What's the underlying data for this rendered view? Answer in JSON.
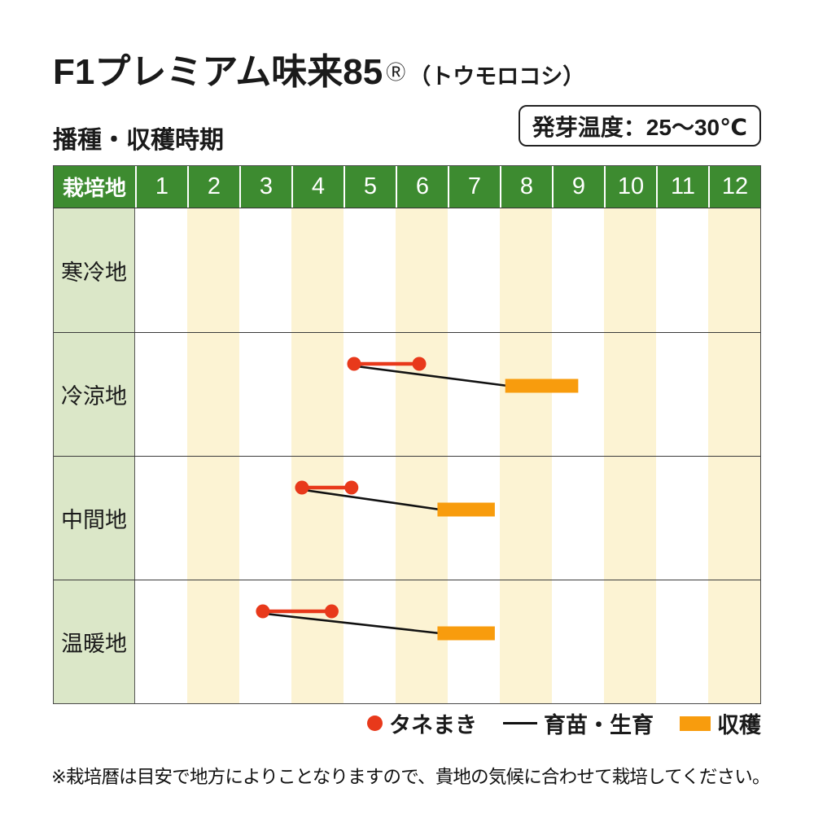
{
  "page": {
    "title_main": "F1プレミアム味来85",
    "title_reg": "Ⓡ",
    "title_sub": "（トウモロコシ）",
    "section_label": "播種・収穫時期",
    "badge": "発芽温度：25〜30℃",
    "footnote": "※栽培暦は目安で地方によりことなりますので、貴地の気候に合わせて栽培してください。"
  },
  "legend": {
    "sowing": "タネまき",
    "growth": "育苗・生育",
    "harvest": "収穫"
  },
  "colors": {
    "header_green": "#3d8b30",
    "label_green": "#dbe7c8",
    "stripe_cream": "#fcf3d3",
    "sowing_red": "#e8391b",
    "harvest_orange": "#f89c0d",
    "growth_black": "#111111"
  },
  "chart_data": {
    "type": "table",
    "title": "播種・収穫時期 (sowing & harvest calendar)",
    "row_header": "栽培地",
    "months": [
      "1",
      "2",
      "3",
      "4",
      "5",
      "6",
      "7",
      "8",
      "9",
      "10",
      "11",
      "12"
    ],
    "striped_months": [
      2,
      4,
      6,
      8,
      10,
      12
    ],
    "axis_note": "values are month positions: 5.2 = 20% into May; sowing = [start,end] red dots joined by red line; growth = black line from sowing start to harvest start; harvest = [start,end] orange bar",
    "rows": [
      {
        "label": "寒冷地",
        "sowing": null,
        "growth": false,
        "harvest": null
      },
      {
        "label": "冷涼地",
        "sowing": [
          5.2,
          6.45
        ],
        "growth": true,
        "harvest": [
          8.1,
          9.5
        ]
      },
      {
        "label": "中間地",
        "sowing": [
          4.2,
          5.15
        ],
        "growth": true,
        "harvest": [
          6.8,
          7.9
        ]
      },
      {
        "label": "温暖地",
        "sowing": [
          3.45,
          4.77
        ],
        "growth": true,
        "harvest": [
          6.8,
          7.9
        ]
      }
    ]
  }
}
